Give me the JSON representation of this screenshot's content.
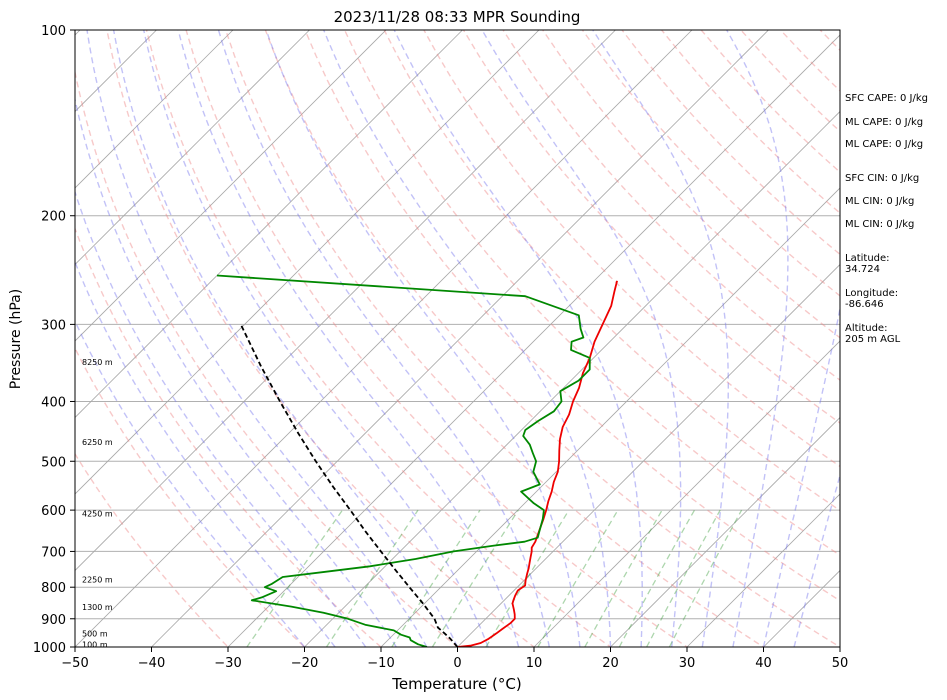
{
  "chart_data": {
    "type": "line",
    "title": "2023/11/28 08:33 MPR Sounding",
    "xlabel": "Temperature (°C)",
    "ylabel": "Pressure (hPa)",
    "xlim": [
      -50,
      50
    ],
    "ylim": [
      1000,
      100
    ],
    "y_scale": "log",
    "skew": true,
    "grid": true,
    "x_ticks": [
      -50,
      -40,
      -30,
      -20,
      -10,
      0,
      10,
      20,
      30,
      40,
      50
    ],
    "y_ticks": [
      1000,
      900,
      800,
      700,
      600,
      500,
      400,
      300,
      200,
      100
    ],
    "height_labels": [
      {
        "p": 990,
        "label": "100 m"
      },
      {
        "p": 950,
        "label": "500 m"
      },
      {
        "p": 862,
        "label": "1300 m"
      },
      {
        "p": 777,
        "label": "2250 m"
      },
      {
        "p": 608,
        "label": "4250 m"
      },
      {
        "p": 465,
        "label": "6250 m"
      },
      {
        "p": 345,
        "label": "8250 m"
      }
    ],
    "series": [
      {
        "role": "temperature",
        "color": "#ee0000",
        "points": [
          [
            1000,
            0
          ],
          [
            995,
            1.5
          ],
          [
            985,
            2.5
          ],
          [
            970,
            3
          ],
          [
            950,
            3.3
          ],
          [
            935,
            3.5
          ],
          [
            915,
            3.8
          ],
          [
            900,
            3.8
          ],
          [
            885,
            3.2
          ],
          [
            870,
            2.5
          ],
          [
            860,
            2
          ],
          [
            850,
            1.5
          ],
          [
            840,
            1.2
          ],
          [
            825,
            0.8
          ],
          [
            810,
            0.5
          ],
          [
            795,
            0.8
          ],
          [
            780,
            0.2
          ],
          [
            760,
            -0.5
          ],
          [
            745,
            -1
          ],
          [
            730,
            -1.6
          ],
          [
            715,
            -2.2
          ],
          [
            700,
            -2.8
          ],
          [
            690,
            -3.3
          ],
          [
            675,
            -3.6
          ],
          [
            660,
            -4.1
          ],
          [
            640,
            -4.8
          ],
          [
            620,
            -5.5
          ],
          [
            600,
            -6.3
          ],
          [
            580,
            -7.2
          ],
          [
            560,
            -8
          ],
          [
            540,
            -9
          ],
          [
            520,
            -9.8
          ],
          [
            500,
            -11
          ],
          [
            480,
            -12.4
          ],
          [
            460,
            -13.8
          ],
          [
            440,
            -15
          ],
          [
            420,
            -15.8
          ],
          [
            400,
            -17
          ],
          [
            380,
            -18
          ],
          [
            360,
            -19.4
          ],
          [
            340,
            -20.5
          ],
          [
            320,
            -22
          ],
          [
            300,
            -23.2
          ],
          [
            280,
            -24.5
          ],
          [
            265,
            -26
          ],
          [
            255,
            -27
          ]
        ]
      },
      {
        "role": "dewpoint",
        "color": "#008800",
        "points": [
          [
            1000,
            -4
          ],
          [
            990,
            -5.5
          ],
          [
            975,
            -7
          ],
          [
            965,
            -7.5
          ],
          [
            955,
            -9
          ],
          [
            940,
            -10.5
          ],
          [
            920,
            -15
          ],
          [
            900,
            -18
          ],
          [
            880,
            -22
          ],
          [
            860,
            -27
          ],
          [
            840,
            -33
          ],
          [
            830,
            -32
          ],
          [
            812,
            -31
          ],
          [
            800,
            -33
          ],
          [
            790,
            -32.5
          ],
          [
            770,
            -32
          ],
          [
            755,
            -27
          ],
          [
            740,
            -22
          ],
          [
            720,
            -17
          ],
          [
            700,
            -13
          ],
          [
            685,
            -8.5
          ],
          [
            675,
            -5
          ],
          [
            665,
            -3.8
          ],
          [
            650,
            -4.4
          ],
          [
            620,
            -5.6
          ],
          [
            600,
            -6.6
          ],
          [
            585,
            -8.8
          ],
          [
            560,
            -12
          ],
          [
            545,
            -10.5
          ],
          [
            520,
            -13
          ],
          [
            510,
            -13.5
          ],
          [
            500,
            -14
          ],
          [
            485,
            -15.5
          ],
          [
            470,
            -17
          ],
          [
            455,
            -19
          ],
          [
            445,
            -19.5
          ],
          [
            430,
            -19
          ],
          [
            415,
            -18.2
          ],
          [
            400,
            -18.5
          ],
          [
            385,
            -20
          ],
          [
            370,
            -19
          ],
          [
            355,
            -19
          ],
          [
            340,
            -20.5
          ],
          [
            330,
            -24
          ],
          [
            320,
            -25
          ],
          [
            315,
            -24
          ],
          [
            305,
            -25.5
          ],
          [
            290,
            -27.5
          ],
          [
            270,
            -37
          ],
          [
            250,
            -80
          ]
        ]
      },
      {
        "role": "parcel",
        "color": "#000000",
        "dashed": true,
        "points": [
          [
            1000,
            0
          ],
          [
            970,
            -2
          ],
          [
            950,
            -3.5
          ],
          [
            930,
            -5.1
          ],
          [
            900,
            -6.7
          ],
          [
            850,
            -10.2
          ],
          [
            800,
            -14.1
          ],
          [
            750,
            -18.2
          ],
          [
            700,
            -22.5
          ],
          [
            650,
            -27.1
          ],
          [
            600,
            -31.9
          ],
          [
            550,
            -37.2
          ],
          [
            500,
            -42.8
          ],
          [
            450,
            -48.8
          ],
          [
            400,
            -55.3
          ],
          [
            350,
            -62.5
          ],
          [
            300,
            -70.5
          ]
        ]
      }
    ]
  },
  "side_panel": {
    "sfc_cape": "SFC CAPE: 0 J/kg",
    "ml_cape_1": "ML CAPE: 0 J/kg",
    "ml_cape_2": "ML CAPE: 0 J/kg",
    "sfc_cin": "SFC CIN: 0 J/kg",
    "ml_cin_1": "ML CIN: 0 J/kg",
    "ml_cin_2": "ML CIN: 0 J/kg",
    "latitude_label": "Latitude:",
    "latitude_value": "34.724",
    "longitude_label": "Longitude:",
    "longitude_value": "-86.646",
    "altitude_label": "Altitude:",
    "altitude_value": "205 m AGL"
  }
}
